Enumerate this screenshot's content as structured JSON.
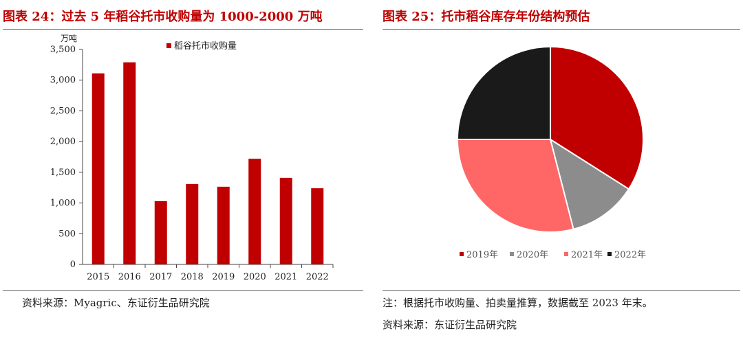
{
  "left_panel": {
    "title": "图表 24：过去 5 年稻谷托市收购量为 1000-2000 万吨",
    "source": "资料来源：Myagric、东证衍生品研究院"
  },
  "right_panel": {
    "title": "图表 25：托市稻谷库存年份结构预估",
    "note": "注：根据托市收购量、拍卖量推算，数据截至 2023 年末。",
    "source": "资料来源：东证衍生品研究院"
  },
  "chart_data": [
    {
      "type": "bar",
      "unit_label": "万吨",
      "categories": [
        "2015",
        "2016",
        "2017",
        "2018",
        "2019",
        "2020",
        "2021",
        "2022"
      ],
      "series": [
        {
          "name": "稻谷托市收购量",
          "color": "#c00000",
          "values": [
            3110,
            3290,
            1030,
            1310,
            1265,
            1720,
            1410,
            1240
          ]
        }
      ],
      "ylim": [
        0,
        3500
      ],
      "yticks": [
        0,
        500,
        1000,
        1500,
        2000,
        2500,
        3000,
        3500
      ],
      "ytick_labels": [
        "0",
        "500",
        "1,000",
        "1,500",
        "2,000",
        "2,500",
        "3,000",
        "3,500"
      ],
      "legend_position": "top-center",
      "grid": false
    },
    {
      "type": "pie",
      "labels": [
        "2019年",
        "2020年",
        "2021年",
        "2022年"
      ],
      "values": [
        34,
        12,
        29,
        25
      ],
      "colors": [
        "#c00000",
        "#8c8c8c",
        "#ff6666",
        "#1a1a1a"
      ],
      "legend_position": "bottom"
    }
  ]
}
